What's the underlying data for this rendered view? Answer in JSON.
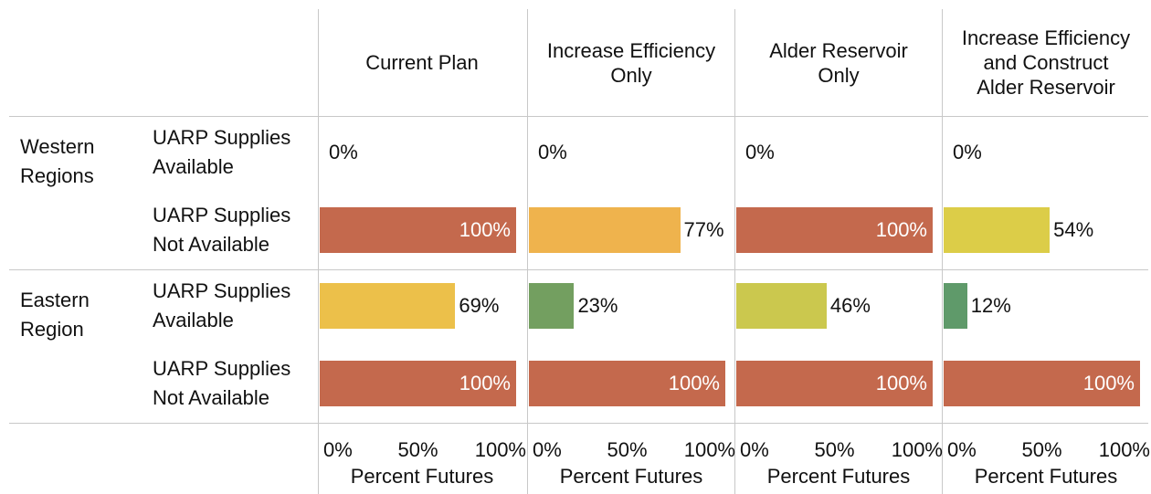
{
  "chart_data": {
    "type": "bar",
    "row_groups": [
      {
        "name": "Western Regions",
        "rows": [
          "UARP Supplies Available",
          "UARP Supplies Not Available"
        ]
      },
      {
        "name": "Eastern Region",
        "rows": [
          "UARP Supplies Available",
          "UARP Supplies Not Available"
        ]
      }
    ],
    "series": [
      {
        "name": "Current Plan",
        "values": [
          0,
          100,
          69,
          100
        ],
        "value_labels": [
          "0%",
          "100%",
          "69%",
          "100%"
        ],
        "colors": [
          null,
          "#c4694d",
          "#ecc04a",
          "#c4694d"
        ]
      },
      {
        "name": "Increase Efficiency Only",
        "values": [
          0,
          77,
          23,
          100
        ],
        "value_labels": [
          "0%",
          "77%",
          "23%",
          "100%"
        ],
        "colors": [
          null,
          "#efb34d",
          "#739f60",
          "#c4694d"
        ]
      },
      {
        "name": "Alder Reservoir Only",
        "values": [
          0,
          100,
          46,
          100
        ],
        "value_labels": [
          "0%",
          "100%",
          "46%",
          "100%"
        ],
        "colors": [
          null,
          "#c4694d",
          "#cbc84e",
          "#c4694d"
        ]
      },
      {
        "name": "Increase Efficiency and Construct Alder Reservoir",
        "values": [
          0,
          54,
          12,
          100
        ],
        "value_labels": [
          "0%",
          "54%",
          "12%",
          "100%"
        ],
        "colors": [
          null,
          "#dccd48",
          "#5f9a6a",
          "#c4694d"
        ]
      }
    ],
    "xlim": [
      0,
      100
    ],
    "xticks": [
      {
        "value": 0,
        "label": "0%"
      },
      {
        "value": 50,
        "label": "50%"
      },
      {
        "value": 100,
        "label": "100%"
      }
    ],
    "xlabel": "Percent Futures"
  }
}
